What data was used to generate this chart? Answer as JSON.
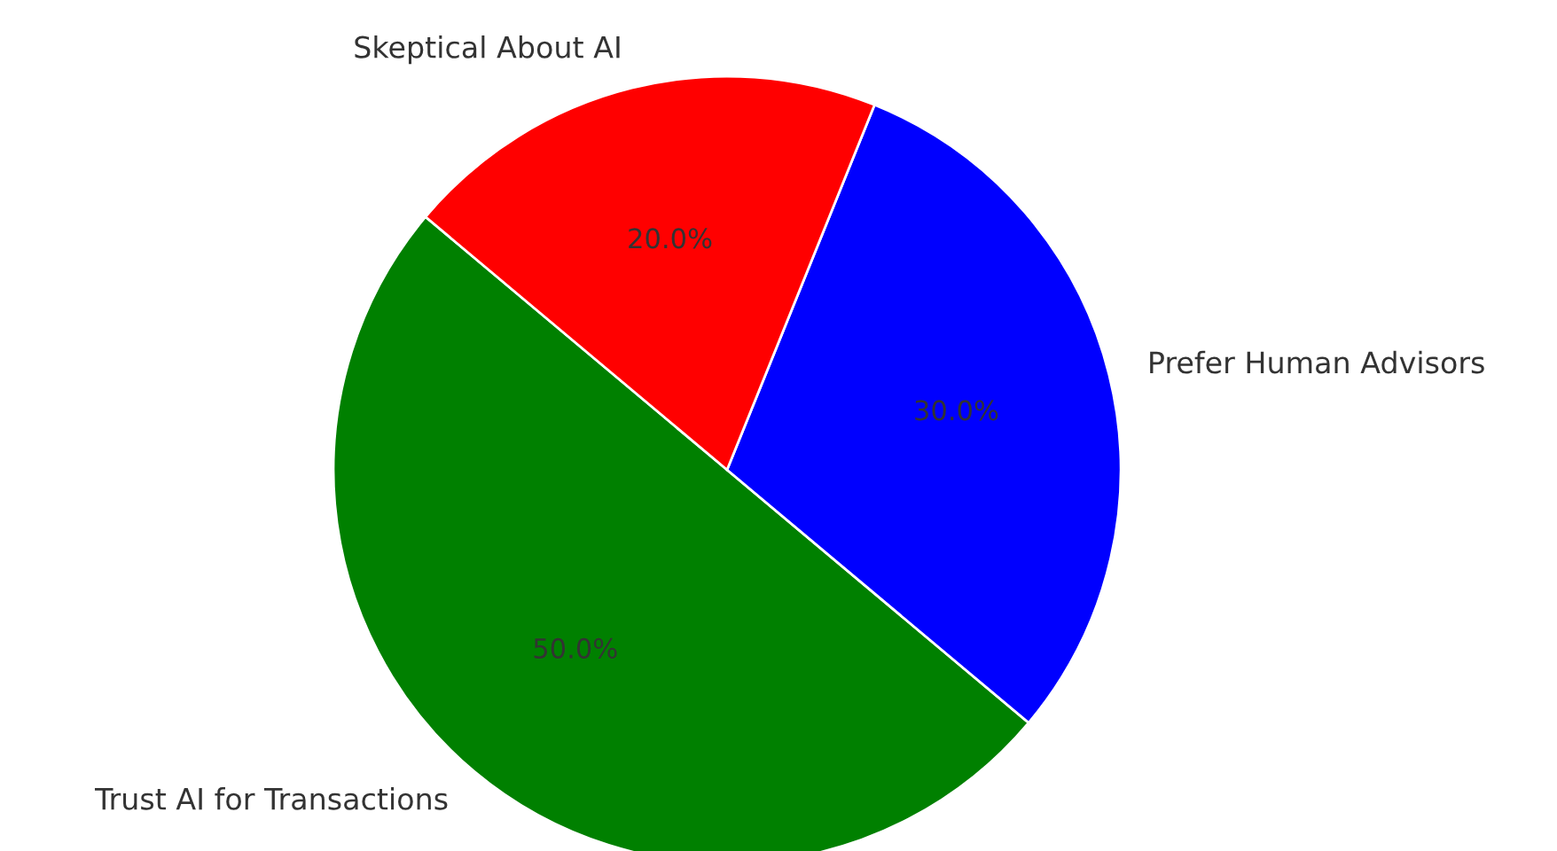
{
  "chart_data": {
    "type": "pie",
    "categories": [
      "Trust AI for Transactions",
      "Prefer Human Advisors",
      "Skeptical About AI"
    ],
    "values": [
      50,
      30,
      20
    ],
    "colors": [
      "#008000",
      "#0000ff",
      "#ff0000"
    ],
    "value_labels": [
      "50.0%",
      "30.0%",
      "20.0%"
    ]
  }
}
